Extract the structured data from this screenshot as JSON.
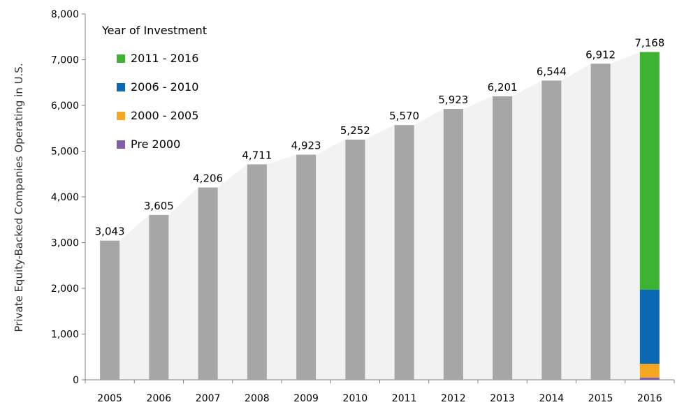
{
  "chart_data": {
    "type": "bar",
    "title": "",
    "xlabel": "",
    "ylabel": "Private Equity-Backed Companies Operating in U.S.",
    "ylim": [
      0,
      8000
    ],
    "yticks": [
      "0",
      "1,000",
      "2,000",
      "3,000",
      "4,000",
      "5,000",
      "6,000",
      "7,000",
      "8,000"
    ],
    "categories": [
      "2005",
      "2006",
      "2007",
      "2008",
      "2009",
      "2010",
      "2011",
      "2012",
      "2013",
      "2014",
      "2015",
      "2016"
    ],
    "values": [
      3043,
      3605,
      4206,
      4711,
      4923,
      5252,
      5570,
      5923,
      6201,
      6544,
      6912,
      7168
    ],
    "value_labels": [
      "3,043",
      "3,605",
      "4,206",
      "4,711",
      "4,923",
      "5,252",
      "5,570",
      "5,923",
      "6,201",
      "6,544",
      "6,912",
      "7,168"
    ],
    "bar_color": "#a6a6a6",
    "trend_area_color": "#f2f2f2",
    "stacked_last_bar": {
      "category": "2016",
      "series": [
        {
          "name": "Pre 2000",
          "value": 50,
          "color": "#7f5fa8"
        },
        {
          "name": "2000 - 2005",
          "value": 300,
          "color": "#f5a623"
        },
        {
          "name": "2006 - 2010",
          "value": 1620,
          "color": "#0b68b3"
        },
        {
          "name": "2011 - 2016",
          "value": 5198,
          "color": "#3db233"
        }
      ]
    },
    "legend": {
      "title": "Year of Investment",
      "position": "top-left",
      "items": [
        {
          "label": "2011 - 2016",
          "color": "#3db233"
        },
        {
          "label": "2006 - 2010",
          "color": "#0b68b3"
        },
        {
          "label": "2000 - 2005",
          "color": "#f5a623"
        },
        {
          "label": "Pre 2000",
          "color": "#7f5fa8"
        }
      ]
    },
    "grid": false
  }
}
